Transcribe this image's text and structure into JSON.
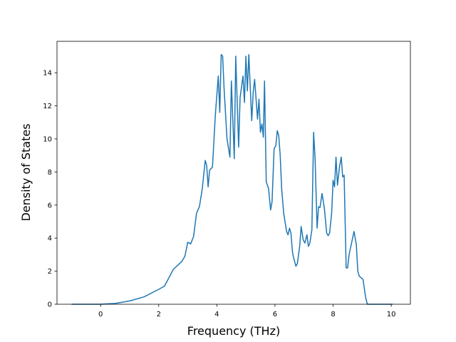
{
  "chart_data": {
    "type": "line",
    "x_label": "Frequency (THz)",
    "y_label": "Density of States",
    "x": [
      -1,
      -0.5,
      0,
      0.5,
      1.0,
      1.5,
      2.0,
      2.2,
      2.5,
      2.8,
      2.9,
      3.0,
      3.1,
      3.2,
      3.3,
      3.4,
      3.5,
      3.6,
      3.65,
      3.7,
      3.75,
      3.85,
      3.95,
      4.05,
      4.1,
      4.15,
      4.2,
      4.25,
      4.35,
      4.45,
      4.5,
      4.6,
      4.65,
      4.75,
      4.8,
      4.9,
      4.95,
      5.0,
      5.05,
      5.1,
      5.2,
      5.25,
      5.3,
      5.4,
      5.45,
      5.5,
      5.55,
      5.6,
      5.64,
      5.7,
      5.78,
      5.85,
      5.9,
      5.97,
      6.03,
      6.08,
      6.13,
      6.18,
      6.23,
      6.3,
      6.4,
      6.45,
      6.5,
      6.55,
      6.6,
      6.63,
      6.72,
      6.77,
      6.85,
      6.9,
      6.97,
      7.03,
      7.1,
      7.15,
      7.2,
      7.27,
      7.33,
      7.38,
      7.45,
      7.5,
      7.55,
      7.62,
      7.7,
      7.78,
      7.83,
      7.88,
      7.95,
      8.0,
      8.05,
      8.1,
      8.15,
      8.22,
      8.28,
      8.33,
      8.38,
      8.45,
      8.5,
      8.55,
      8.72,
      8.8,
      8.85,
      8.9,
      9.03,
      9.12,
      9.18,
      10.05
    ],
    "series": [
      {
        "color": "#1f77b4",
        "values": [
          0,
          0,
          0,
          0.05,
          0.2,
          0.45,
          0.9,
          1.1,
          2.1,
          2.6,
          2.9,
          3.75,
          3.65,
          4.1,
          5.5,
          5.9,
          7.0,
          8.7,
          8.4,
          7.1,
          8.1,
          8.3,
          11.5,
          13.8,
          11.6,
          15.1,
          15.0,
          13.0,
          10.0,
          8.9,
          13.5,
          8.8,
          15.0,
          9.5,
          12.5,
          13.8,
          12.2,
          15.0,
          12.9,
          15.1,
          11.1,
          12.8,
          13.6,
          11.2,
          12.4,
          10.4,
          10.9,
          10.1,
          13.5,
          7.4,
          7.0,
          5.7,
          6.2,
          9.4,
          9.6,
          10.5,
          10.2,
          9.0,
          7.0,
          5.5,
          4.4,
          4.2,
          4.6,
          4.3,
          3.2,
          2.9,
          2.3,
          2.45,
          3.5,
          4.7,
          3.9,
          3.7,
          4.2,
          3.5,
          3.7,
          4.5,
          10.4,
          8.8,
          4.6,
          5.9,
          5.85,
          6.7,
          5.8,
          4.3,
          4.15,
          4.3,
          5.5,
          7.5,
          7.1,
          8.9,
          7.2,
          8.3,
          8.9,
          7.7,
          7.8,
          2.2,
          2.2,
          3.0,
          4.4,
          3.6,
          2.0,
          1.7,
          1.5,
          0.4,
          0,
          0
        ]
      }
    ],
    "xlim": [
      -1.5,
      10.66
    ],
    "ylim": [
      0,
      15.9
    ],
    "xticks": [
      0,
      2,
      4,
      6,
      8,
      10
    ],
    "yticks": [
      0,
      2,
      4,
      6,
      8,
      10,
      12,
      14
    ]
  }
}
